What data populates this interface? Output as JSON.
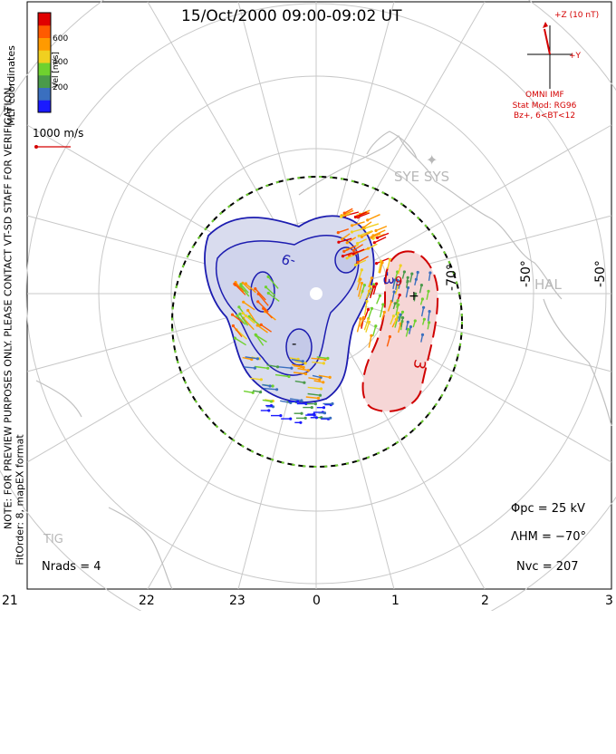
{
  "title": "15/Oct/2000 09:00-09:02 UT",
  "coordinate_system": "MLT coordinates",
  "notice": "NOTE: FOR PREVIEW PURPOSES ONLY. PLEASE CONTACT VT-SD STAFF FOR VERIFICATION.",
  "fit_info": "FitOrder: 8, mapEX format",
  "colorbar": {
    "label": "Vel [m/s]",
    "ticks": [
      "600",
      "400",
      "200"
    ],
    "colors": [
      "#1a1aff",
      "#3a6fbf",
      "#4a9a4a",
      "#6fd12f",
      "#f0d020",
      "#ff9a00",
      "#ff5a00",
      "#e00000"
    ]
  },
  "vector_scale": "1000 m/s",
  "imf": {
    "z_label": "+Z (10 nT)",
    "y_label": "+Y",
    "caption": "OMNI IMF"
  },
  "stat_model": [
    "Stat Mod: RG96",
    "Bz+, 6<BT<12"
  ],
  "stations": [
    "SYE SYS",
    "HAL",
    "TIG"
  ],
  "latitude_labels": [
    "-70°",
    "-50°",
    "-50°"
  ],
  "mlt_labels": [
    "21",
    "22",
    "23",
    "0",
    "1",
    "2",
    "3"
  ],
  "contour_labels": [
    "-9",
    "-3",
    "3",
    "9",
    "-",
    "+"
  ],
  "stats": {
    "phi_pc": "Φpc = 25 kV",
    "lambda_hm": "ΛHM = −70°",
    "n_vc": "Nvc = 207",
    "n_rads": "Nrads = 4"
  },
  "colors": {
    "grid": "#c8c8c8",
    "negative_contour": "#1c1cb0",
    "positive_contour": "#d00000",
    "negative_fill": "#d9dcee",
    "positive_fill": "#f6d6d6",
    "heppner_boundary": "#000000",
    "heppner_dash_accent": "#6fd12f"
  }
}
